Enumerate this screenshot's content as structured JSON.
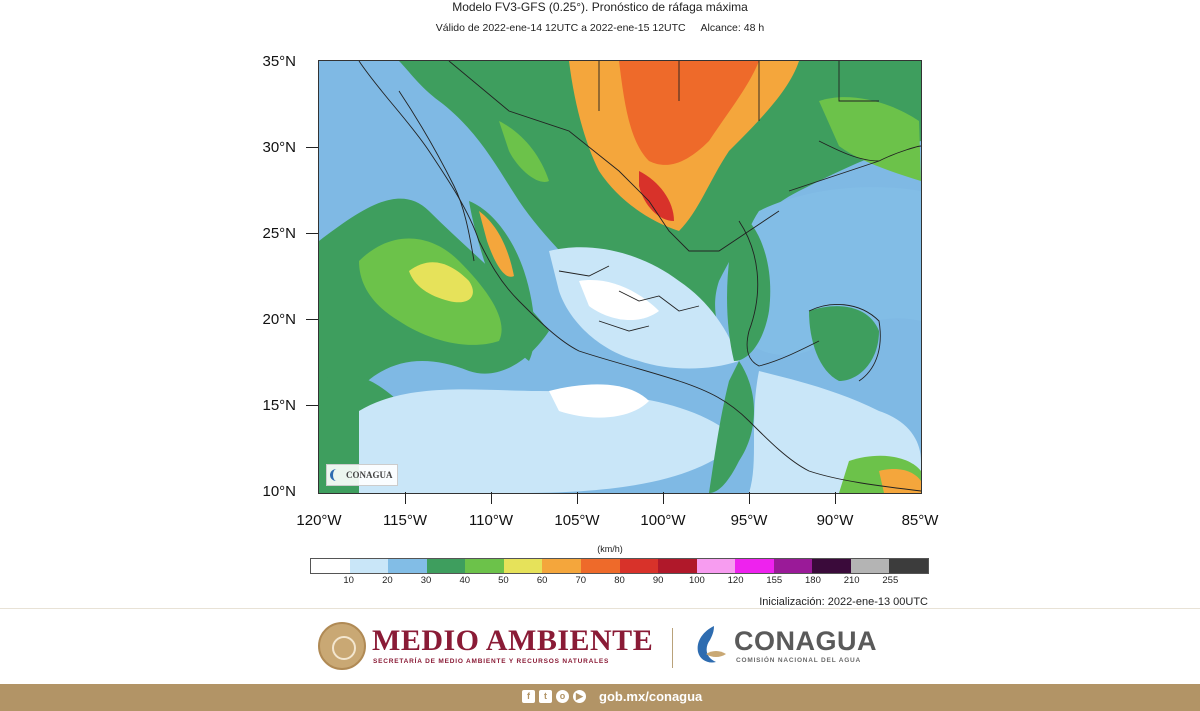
{
  "header": {
    "title": "Modelo FV3-GFS (0.25°). Pronóstico de ráfaga máxima",
    "valid": "Válido de 2022-ene-14 12UTC a 2022-ene-15 12UTC",
    "range": "Alcance: 48 h"
  },
  "map": {
    "lat_labels": [
      "35°N",
      "30°N",
      "25°N",
      "20°N",
      "15°N",
      "10°N"
    ],
    "lon_labels": [
      "120°W",
      "115°W",
      "110°W",
      "105°W",
      "100°W",
      "95°W",
      "90°W",
      "85°W"
    ],
    "extent": {
      "lon_min": -120,
      "lon_max": -85,
      "lat_min": 10,
      "lat_max": 35
    },
    "badge_text": "CONAGUA"
  },
  "colorbar": {
    "unit_label": "(km/h)",
    "colors": [
      "#ffffff",
      "#c9e6f8",
      "#82bde6",
      "#3e9e5e",
      "#6cc24a",
      "#e6e25a",
      "#f4a63c",
      "#ee6a2a",
      "#d8322a",
      "#b0182a",
      "#f79cf0",
      "#ee22ee",
      "#9a1a98",
      "#3a0a3a",
      "#b4b4b4",
      "#3c3c3c"
    ],
    "labels": [
      "10",
      "20",
      "30",
      "40",
      "50",
      "60",
      "70",
      "80",
      "90",
      "100",
      "120",
      "155",
      "180",
      "210",
      "255"
    ]
  },
  "init": "Inicialización: 2022-ene-13 00UTC",
  "footer": {
    "agency_title": "MEDIO AMBIENTE",
    "agency_subtitle": "SECRETARÍA DE MEDIO AMBIENTE Y RECURSOS NATURALES",
    "conagua_title": "CONAGUA",
    "conagua_subtitle": "COMISIÓN NACIONAL DEL AGUA",
    "url": "gob.mx/conagua",
    "social_icons": [
      "facebook-icon",
      "twitter-icon",
      "instagram-icon",
      "youtube-icon"
    ]
  }
}
